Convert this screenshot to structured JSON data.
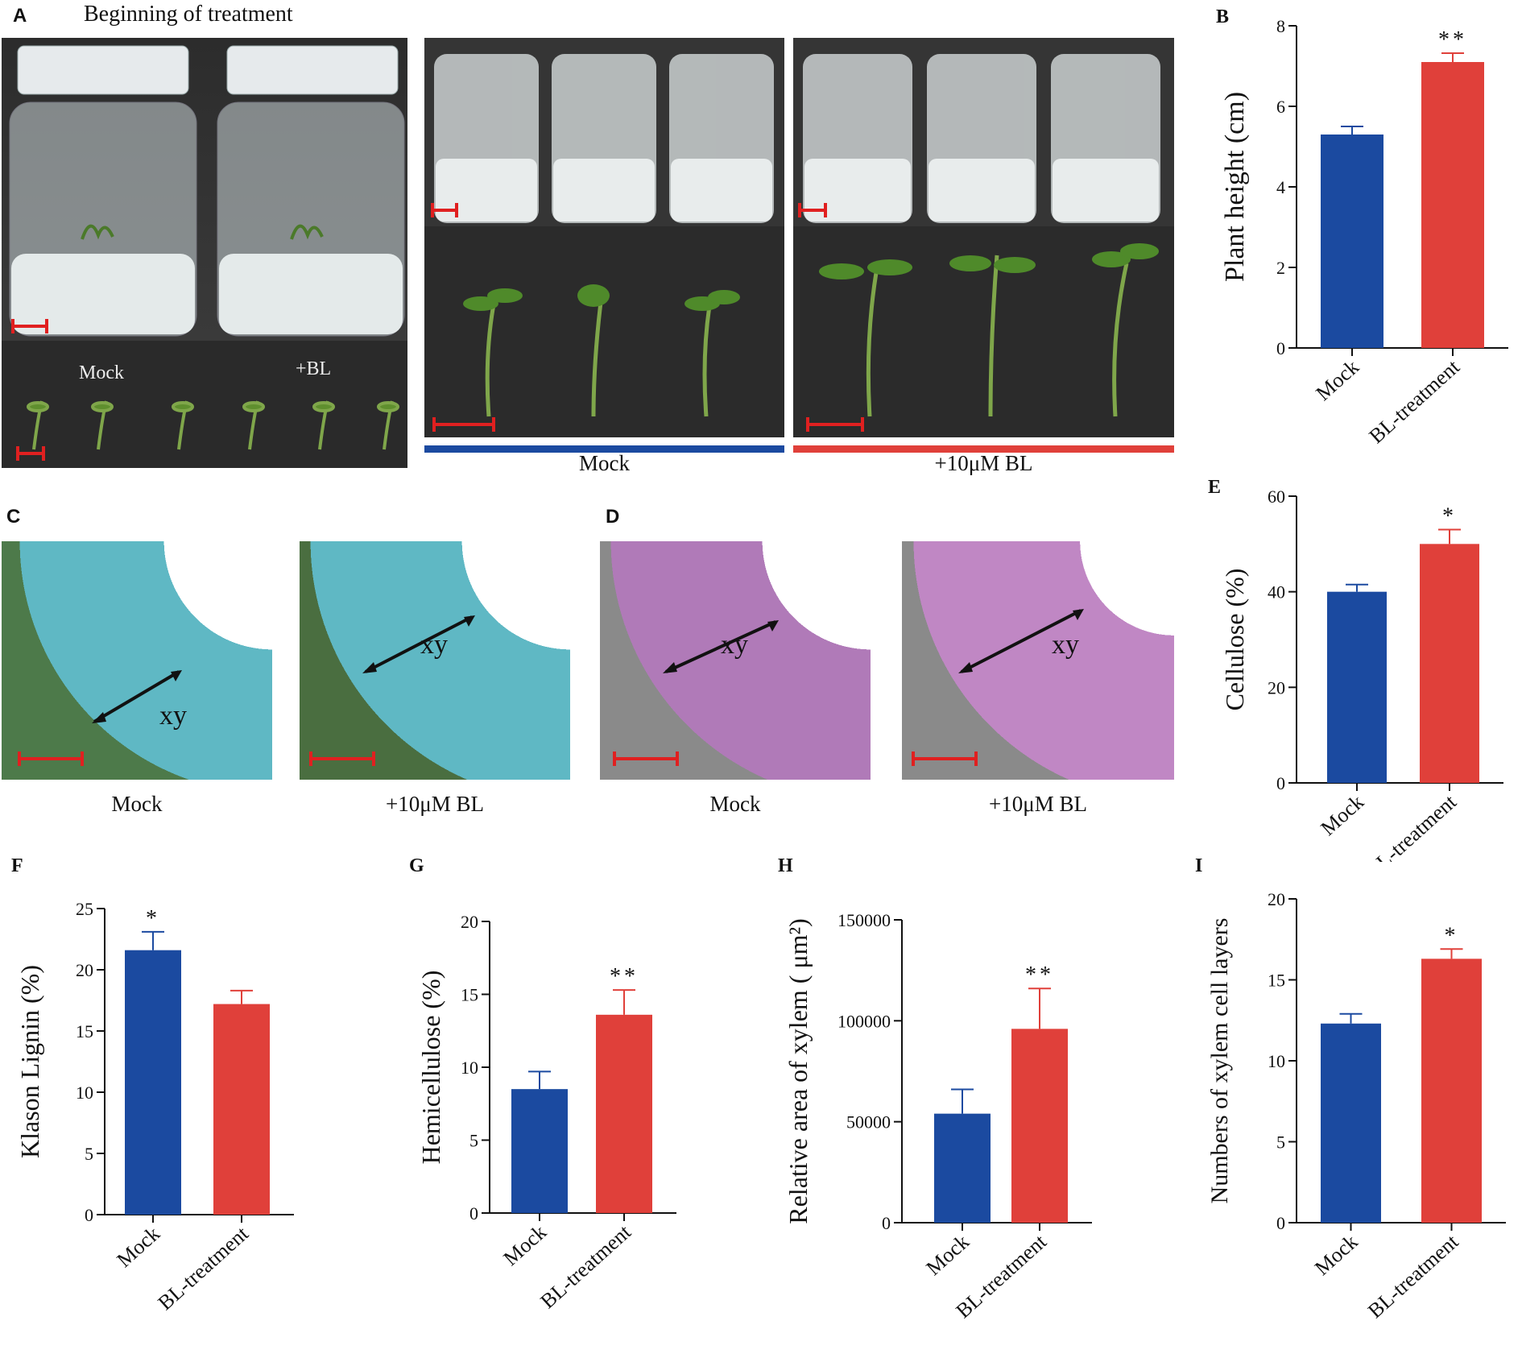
{
  "panels": {
    "a": {
      "letter": "A",
      "heading": "Beginning of treatment",
      "sub_labels": [
        "Mock",
        "+BL"
      ],
      "bar_labels": [
        "Mock",
        "+10μM BL"
      ],
      "colors": {
        "mock": "#1b4aa0",
        "bl": "#e0403a"
      }
    },
    "c": {
      "letter": "C",
      "captions": [
        "Mock",
        "+10μM BL"
      ],
      "marker": "xy"
    },
    "d": {
      "letter": "D",
      "captions": [
        "Mock",
        "+10μM BL"
      ],
      "marker": "xy"
    }
  },
  "chart_data": [
    {
      "id": "b",
      "letter": "B",
      "type": "bar",
      "ylabel": "Plant height (cm)",
      "categories": [
        "Mock",
        "BL-treatment"
      ],
      "values": [
        5.3,
        7.1
      ],
      "errors": [
        0.2,
        0.22
      ],
      "sig": [
        "",
        "**"
      ],
      "ylim": [
        0,
        8
      ],
      "yticks": [
        0,
        2,
        4,
        6,
        8
      ],
      "colors": [
        "#1b4aa0",
        "#e0403a"
      ]
    },
    {
      "id": "e",
      "letter": "E",
      "type": "bar",
      "ylabel": "Cellulose (%)",
      "categories": [
        "Mock",
        "BL-treatment"
      ],
      "values": [
        40,
        50
      ],
      "errors": [
        1.5,
        3
      ],
      "sig": [
        "",
        "*"
      ],
      "ylim": [
        0,
        60
      ],
      "yticks": [
        0,
        20,
        40,
        60
      ],
      "colors": [
        "#1b4aa0",
        "#e0403a"
      ]
    },
    {
      "id": "f",
      "letter": "F",
      "type": "bar",
      "ylabel": "Klason Lignin (%)",
      "categories": [
        "Mock",
        "BL-treatment"
      ],
      "values": [
        21.6,
        17.2
      ],
      "errors": [
        1.5,
        1.1
      ],
      "sig": [
        "*",
        ""
      ],
      "ylim": [
        0,
        25
      ],
      "yticks": [
        0,
        5,
        10,
        15,
        20,
        25
      ],
      "colors": [
        "#1b4aa0",
        "#e0403a"
      ]
    },
    {
      "id": "g",
      "letter": "G",
      "type": "bar",
      "ylabel": "Hemicellulose (%)",
      "categories": [
        "Mock",
        "BL-treatment"
      ],
      "values": [
        8.5,
        13.6
      ],
      "errors": [
        1.2,
        1.7
      ],
      "sig": [
        "",
        "**"
      ],
      "ylim": [
        0,
        20
      ],
      "yticks": [
        0,
        5,
        10,
        15,
        20
      ],
      "colors": [
        "#1b4aa0",
        "#e0403a"
      ]
    },
    {
      "id": "h",
      "letter": "H",
      "type": "bar",
      "ylabel": "Relative area of xylem ( μm²)",
      "categories": [
        "Mock",
        "BL-treatment"
      ],
      "values": [
        54000,
        96000
      ],
      "errors": [
        12000,
        20000
      ],
      "sig": [
        "",
        "**"
      ],
      "ylim": [
        0,
        150000
      ],
      "yticks": [
        0,
        50000,
        100000,
        150000
      ],
      "colors": [
        "#1b4aa0",
        "#e0403a"
      ]
    },
    {
      "id": "i",
      "letter": "I",
      "type": "bar",
      "ylabel": "Numbers of xylem cell layers",
      "categories": [
        "Mock",
        "BL-treatment"
      ],
      "values": [
        12.3,
        16.3
      ],
      "errors": [
        0.6,
        0.6
      ],
      "sig": [
        "",
        "*"
      ],
      "ylim": [
        0,
        20
      ],
      "yticks": [
        0,
        5,
        10,
        15,
        20
      ],
      "colors": [
        "#1b4aa0",
        "#e0403a"
      ]
    }
  ]
}
